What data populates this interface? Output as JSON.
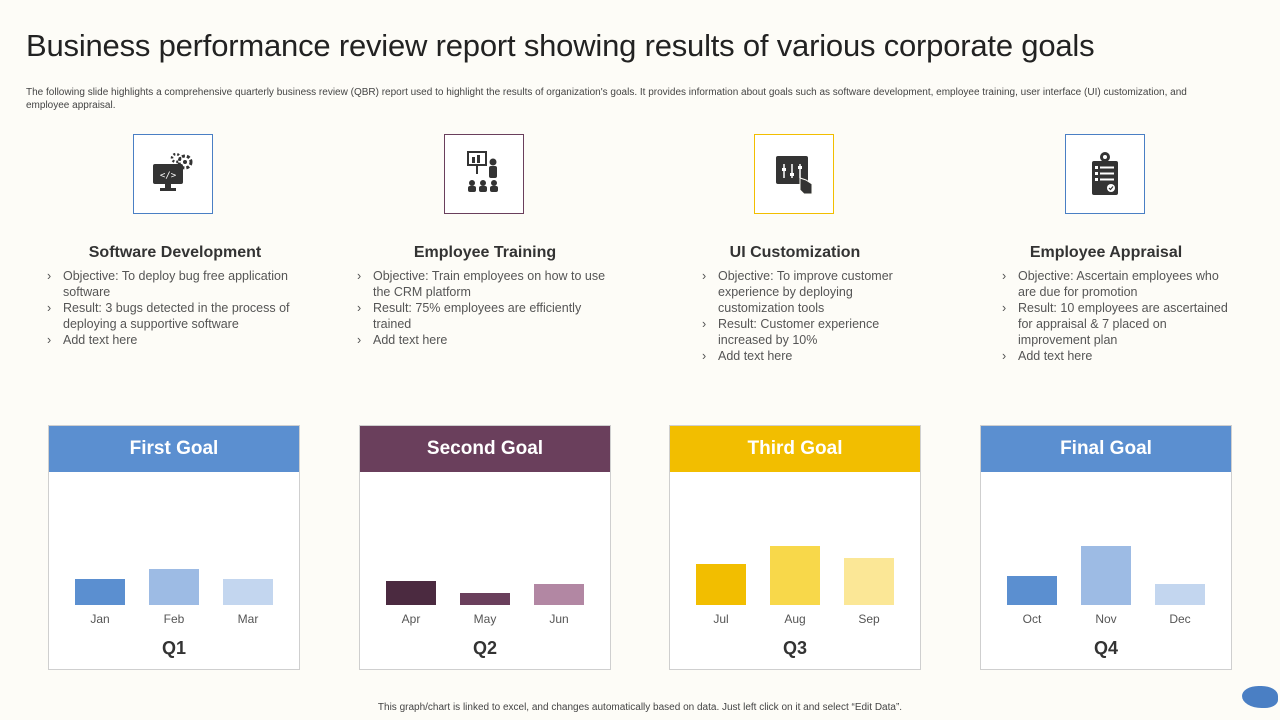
{
  "title": "Business performance review report showing results of various corporate goals",
  "subtitle": "The following slide highlights a comprehensive quarterly business review (QBR) report used to highlight the results of organization's goals. It provides information about goals such as software development, employee training, user interface (UI) customization, and employee appraisal.",
  "goals": [
    {
      "icon": "software-development-icon",
      "heading": "Software Development",
      "bullets": [
        "Objective: To deploy bug free application software",
        "Result: 3 bugs detected in the process of deploying a supportive  software",
        "Add text here"
      ]
    },
    {
      "icon": "employee-training-icon",
      "heading": "Employee Training",
      "bullets": [
        "Objective: Train employees on how to use the CRM platform",
        "Result: 75% employees are efficiently trained",
        "Add text here"
      ]
    },
    {
      "icon": "ui-customization-icon",
      "heading": "UI Customization",
      "bullets": [
        "Objective: To improve customer experience  by deploying customization tools",
        "Result: Customer experience increased by 10%",
        "Add text here"
      ]
    },
    {
      "icon": "employee-appraisal-icon",
      "heading": "Employee Appraisal",
      "bullets": [
        "Objective: Ascertain employees who are due for promotion",
        "Result: 10 employees are ascertained for appraisal & 7 placed on improvement  plan",
        "Add text here"
      ]
    }
  ],
  "colors": {
    "first": "#5b8fd0",
    "second": "#6a3f5c",
    "third": "#f2be00",
    "final": "#5b8fd0",
    "icon_border_blue": "#4a7fc4",
    "icon_border_purple": "#6a3f5c",
    "icon_border_yellow": "#f2be00"
  },
  "chart_data": [
    {
      "type": "bar",
      "title": "First Goal",
      "xlabel": "Q1",
      "categories": [
        "Jan",
        "Feb",
        "Mar"
      ],
      "values": [
        26,
        36,
        26
      ],
      "bar_colors": [
        "#5b8fd0",
        "#9dbbe4",
        "#c3d6ef"
      ],
      "ylim": [
        0,
        100
      ]
    },
    {
      "type": "bar",
      "title": "Second Goal",
      "xlabel": "Q2",
      "categories": [
        "Apr",
        "May",
        "Jun"
      ],
      "values": [
        24,
        12,
        21
      ],
      "bar_colors": [
        "#4b2a40",
        "#6a3f5c",
        "#b287a3"
      ],
      "ylim": [
        0,
        100
      ]
    },
    {
      "type": "bar",
      "title": "Third Goal",
      "xlabel": "Q3",
      "categories": [
        "Jul",
        "Aug",
        "Sep"
      ],
      "values": [
        41,
        59,
        47
      ],
      "bar_colors": [
        "#f2be00",
        "#f8d84a",
        "#fbe796"
      ],
      "ylim": [
        0,
        100
      ]
    },
    {
      "type": "bar",
      "title": "Final Goal",
      "xlabel": "Q4",
      "categories": [
        "Oct",
        "Nov",
        "Dec"
      ],
      "values": [
        29,
        59,
        21
      ],
      "bar_colors": [
        "#5b8fd0",
        "#9dbbe4",
        "#c3d6ef"
      ],
      "ylim": [
        0,
        100
      ]
    }
  ],
  "footer": "This graph/chart is linked to excel, and changes automatically based on data. Just left click on it and select “Edit Data”."
}
